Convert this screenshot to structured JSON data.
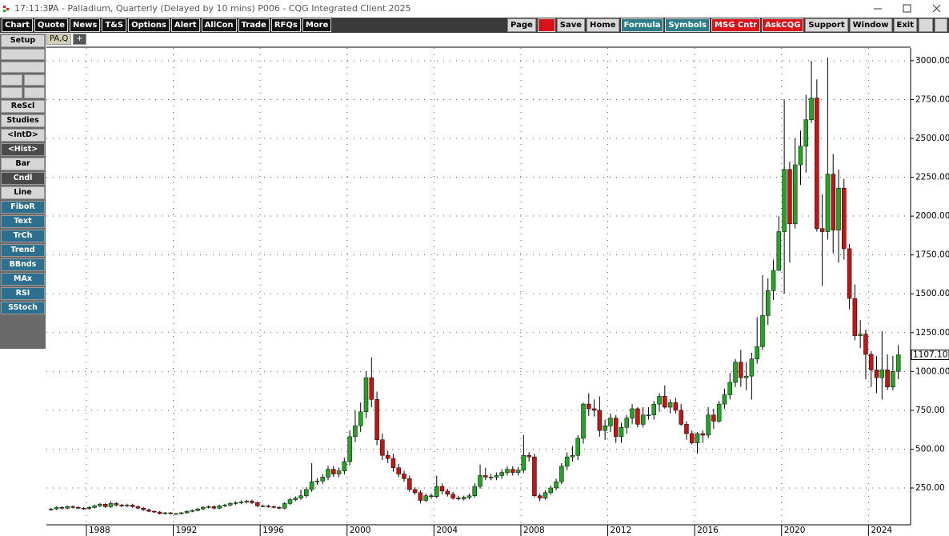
{
  "window": {
    "time": "17:11:37",
    "title": "PA - Palladium, Quarterly (Delayed by 10 mins)   P006 - CQG Integrated Client 2025"
  },
  "toolbar": {
    "left": [
      "Chart",
      "Quote",
      "News",
      "T&S",
      "Options",
      "Alert",
      "AllCon",
      "Trade",
      "RFQs",
      "More"
    ],
    "right": [
      "Page",
      "Save",
      "Home",
      "Formula",
      "Symbols",
      "MSG Cntr",
      "AskCQG",
      "Support",
      "Window",
      "Exit"
    ]
  },
  "tabs": [
    "PA,Q",
    "+"
  ],
  "sidebar": [
    "Setup",
    "ReScl",
    "Studies",
    "<IntD>",
    "<Hist>",
    "Bar",
    "Cndl",
    "Line",
    "FiboR",
    "Text",
    "TrCh",
    "Trend",
    "BBnds",
    "MAx",
    "RSI",
    "SStoch"
  ],
  "chart_data": {
    "type": "candlestick",
    "up_color": "#1fa81f",
    "down_color": "#cc1111",
    "grid": true,
    "xlim": [
      1986.16,
      2025.94
    ],
    "xticks": [
      1988,
      1992,
      1996,
      2000,
      2004,
      2008,
      2012,
      2016,
      2020,
      2024
    ],
    "ylim": [
      13,
      3082
    ],
    "yticks": [
      {
        "value": 250,
        "label": "250.00"
      },
      {
        "value": 500,
        "label": "500.00"
      },
      {
        "value": 750,
        "label": "750.00"
      },
      {
        "value": 1000,
        "label": "1000.00"
      },
      {
        "value": 1250,
        "label": "1250.00"
      },
      {
        "value": 1500,
        "label": "1500.00"
      },
      {
        "value": 1750,
        "label": "1750.00"
      },
      {
        "value": 2000,
        "label": "2000.00"
      },
      {
        "value": 2250,
        "label": "2250.00"
      },
      {
        "value": 2500,
        "label": "2500.00"
      },
      {
        "value": 2750,
        "label": "2750.00"
      },
      {
        "value": 3000,
        "label": "3000.00"
      }
    ],
    "last_price": {
      "value": 1107.1,
      "label": "1107.10"
    },
    "x": [
      1986.375,
      1986.625,
      1986.875,
      1987.125,
      1987.375,
      1987.625,
      1987.875,
      1988.125,
      1988.375,
      1988.625,
      1988.875,
      1989.125,
      1989.375,
      1989.625,
      1989.875,
      1990.125,
      1990.375,
      1990.625,
      1990.875,
      1991.125,
      1991.375,
      1991.625,
      1991.875,
      1992.125,
      1992.375,
      1992.625,
      1992.875,
      1993.125,
      1993.375,
      1993.625,
      1993.875,
      1994.125,
      1994.375,
      1994.625,
      1994.875,
      1995.125,
      1995.375,
      1995.625,
      1995.875,
      1996.125,
      1996.375,
      1996.625,
      1996.875,
      1997.125,
      1997.375,
      1997.625,
      1997.875,
      1998.125,
      1998.375,
      1998.625,
      1998.875,
      1999.125,
      1999.375,
      1999.625,
      1999.875,
      2000.125,
      2000.375,
      2000.625,
      2000.875,
      2001.125,
      2001.375,
      2001.625,
      2001.875,
      2002.125,
      2002.375,
      2002.625,
      2002.875,
      2003.125,
      2003.375,
      2003.625,
      2003.875,
      2004.125,
      2004.375,
      2004.625,
      2004.875,
      2005.125,
      2005.375,
      2005.625,
      2005.875,
      2006.125,
      2006.375,
      2006.625,
      2006.875,
      2007.125,
      2007.375,
      2007.625,
      2007.875,
      2008.125,
      2008.375,
      2008.625,
      2008.875,
      2009.125,
      2009.375,
      2009.625,
      2009.875,
      2010.125,
      2010.375,
      2010.625,
      2010.875,
      2011.125,
      2011.375,
      2011.625,
      2011.875,
      2012.125,
      2012.375,
      2012.625,
      2012.875,
      2013.125,
      2013.375,
      2013.625,
      2013.875,
      2014.125,
      2014.375,
      2014.625,
      2014.875,
      2015.125,
      2015.375,
      2015.625,
      2015.875,
      2016.125,
      2016.375,
      2016.625,
      2016.875,
      2017.125,
      2017.375,
      2017.625,
      2017.875,
      2018.125,
      2018.375,
      2018.625,
      2018.875,
      2019.125,
      2019.375,
      2019.625,
      2019.875,
      2020.125,
      2020.375,
      2020.625,
      2020.875,
      2021.125,
      2021.375,
      2021.625,
      2021.875,
      2022.125,
      2022.375,
      2022.625,
      2022.875,
      2023.125,
      2023.375,
      2023.625,
      2023.875,
      2024.125,
      2024.375,
      2024.625,
      2024.875,
      2025.125,
      2025.375
    ],
    "open": [
      110,
      115,
      125,
      120,
      130,
      125,
      120,
      118,
      125,
      135,
      145,
      130,
      150,
      140,
      135,
      140,
      130,
      120,
      110,
      100,
      95,
      85,
      90,
      85,
      85,
      90,
      100,
      105,
      115,
      125,
      130,
      120,
      135,
      140,
      150,
      155,
      160,
      165,
      155,
      135,
      135,
      130,
      125,
      120,
      150,
      175,
      185,
      200,
      240,
      290,
      295,
      320,
      370,
      340,
      360,
      420,
      580,
      650,
      740,
      960,
      820,
      560,
      460,
      440,
      380,
      340,
      310,
      240,
      220,
      170,
      200,
      195,
      260,
      230,
      210,
      185,
      180,
      190,
      200,
      260,
      330,
      320,
      320,
      330,
      350,
      370,
      350,
      365,
      460,
      450,
      200,
      185,
      220,
      250,
      290,
      390,
      450,
      460,
      570,
      790,
      760,
      750,
      620,
      650,
      700,
      580,
      640,
      700,
      760,
      660,
      720,
      720,
      790,
      840,
      770,
      800,
      750,
      660,
      600,
      540,
      600,
      590,
      720,
      680,
      790,
      850,
      930,
      1060,
      960,
      970,
      1080,
      1160,
      1360,
      1520,
      1650,
      1900,
      2300,
      1950,
      2330,
      2450,
      2620,
      2760,
      1920,
      1900,
      2270,
      1910,
      2180,
      1790,
      1470,
      1230,
      1240,
      1110,
      1010,
      960,
      1010,
      900,
      1000
    ],
    "high": [
      122,
      132,
      133,
      138,
      138,
      133,
      127,
      133,
      143,
      154,
      154,
      165,
      159,
      148,
      148,
      148,
      138,
      127,
      117,
      106,
      101,
      95,
      95,
      90,
      95,
      106,
      111,
      122,
      132,
      138,
      138,
      143,
      148,
      159,
      164,
      170,
      175,
      175,
      164,
      143,
      143,
      138,
      133,
      159,
      186,
      196,
      240,
      255,
      410,
      313,
      340,
      392,
      392,
      382,
      445,
      620,
      750,
      800,
      1000,
      1090,
      870,
      600,
      490,
      470,
      405,
      360,
      330,
      255,
      235,
      215,
      215,
      330,
      280,
      245,
      225,
      200,
      200,
      215,
      280,
      400,
      380,
      340,
      350,
      370,
      390,
      390,
      385,
      590,
      480,
      470,
      215,
      235,
      265,
      310,
      410,
      480,
      520,
      590,
      800,
      860,
      820,
      840,
      690,
      730,
      720,
      670,
      720,
      790,
      770,
      770,
      770,
      810,
      860,
      910,
      820,
      830,
      790,
      680,
      620,
      610,
      620,
      770,
      760,
      810,
      890,
      990,
      1080,
      1140,
      1060,
      1120,
      1350,
      1620,
      1600,
      1720,
      2000,
      2750,
      2350,
      2500,
      2550,
      2780,
      3000,
      2880,
      2140,
      3020,
      2400,
      2300,
      2240,
      1820,
      1560,
      1330,
      1270,
      1130,
      1100,
      1260,
      1110,
      1100,
      1170
    ],
    "low": [
      104,
      108,
      113,
      113,
      118,
      113,
      111,
      111,
      118,
      127,
      122,
      122,
      132,
      127,
      127,
      122,
      113,
      103,
      94,
      89,
      80,
      80,
      80,
      80,
      80,
      85,
      94,
      99,
      108,
      118,
      113,
      113,
      127,
      132,
      141,
      146,
      150,
      146,
      127,
      127,
      122,
      118,
      113,
      113,
      141,
      165,
      174,
      188,
      225,
      270,
      277,
      300,
      320,
      320,
      338,
      395,
      545,
      610,
      700,
      770,
      525,
      430,
      410,
      355,
      320,
      290,
      225,
      205,
      150,
      160,
      180,
      183,
      210,
      195,
      174,
      170,
      170,
      178,
      188,
      245,
      300,
      300,
      300,
      310,
      330,
      330,
      330,
      345,
      420,
      190,
      165,
      175,
      205,
      235,
      275,
      365,
      420,
      430,
      535,
      715,
      710,
      580,
      560,
      610,
      540,
      540,
      600,
      660,
      640,
      640,
      690,
      690,
      740,
      760,
      730,
      730,
      650,
      560,
      530,
      470,
      540,
      570,
      630,
      670,
      760,
      820,
      900,
      900,
      880,
      820,
      1050,
      1140,
      1300,
      1460,
      1650,
      1500,
      1700,
      1920,
      2200,
      2280,
      2600,
      1900,
      1550,
      1850,
      1760,
      1700,
      1720,
      1400,
      1200,
      1150,
      950,
      900,
      860,
      820,
      880,
      880,
      950
    ],
    "close": [
      115,
      125,
      120,
      130,
      125,
      120,
      118,
      125,
      135,
      145,
      130,
      150,
      140,
      135,
      140,
      130,
      120,
      110,
      100,
      95,
      85,
      90,
      85,
      85,
      90,
      100,
      105,
      115,
      125,
      130,
      120,
      135,
      140,
      150,
      155,
      160,
      165,
      155,
      135,
      135,
      130,
      125,
      120,
      150,
      175,
      185,
      200,
      240,
      290,
      295,
      320,
      370,
      340,
      360,
      420,
      580,
      650,
      740,
      960,
      820,
      560,
      460,
      440,
      380,
      340,
      310,
      240,
      220,
      170,
      200,
      195,
      260,
      230,
      210,
      185,
      180,
      190,
      200,
      260,
      330,
      320,
      320,
      330,
      350,
      370,
      350,
      365,
      460,
      450,
      200,
      185,
      220,
      250,
      290,
      390,
      450,
      460,
      570,
      790,
      760,
      750,
      620,
      650,
      700,
      580,
      640,
      700,
      760,
      660,
      720,
      720,
      790,
      840,
      770,
      800,
      750,
      660,
      600,
      540,
      600,
      590,
      720,
      680,
      790,
      850,
      930,
      1060,
      960,
      970,
      1080,
      1160,
      1360,
      1520,
      1650,
      1900,
      2300,
      1950,
      2330,
      2450,
      2620,
      2760,
      1920,
      1900,
      2270,
      1910,
      2180,
      1790,
      1470,
      1230,
      1240,
      1110,
      1010,
      960,
      1010,
      900,
      1000,
      1107.1
    ]
  }
}
